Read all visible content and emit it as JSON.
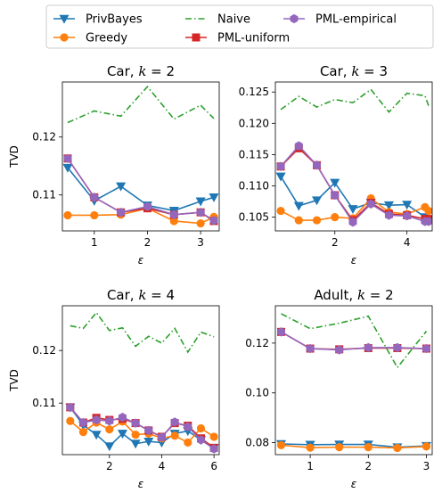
{
  "legend": {
    "entries": [
      {
        "label": "PrivBayes",
        "color": "#1f77b4",
        "marker": "triangle-down",
        "dash": "solid"
      },
      {
        "label": "Greedy",
        "color": "#ff7f0e",
        "marker": "circle",
        "dash": "solid"
      },
      {
        "label": "Naive",
        "color": "#2ca02c",
        "marker": "none",
        "dash": "dashdot"
      },
      {
        "label": "PML-uniform",
        "color": "#d62728",
        "marker": "square",
        "dash": "solid"
      },
      {
        "label": "PML-empirical",
        "color": "#9467bd",
        "marker": "hexagon",
        "dash": "solid"
      }
    ],
    "placement": "top-center"
  },
  "chart_data": [
    {
      "type": "line",
      "title": "Car, k = 2",
      "title_dataset": "Car, ",
      "title_var": "k",
      "title_rest": " = 2",
      "xlabel": "ε",
      "ylabel": "TVD",
      "xlim": [
        0.4,
        3.35
      ],
      "ylim": [
        0.1038,
        0.1295
      ],
      "xticks": [
        1,
        2,
        3
      ],
      "xtick_labels": [
        "1",
        "2",
        "3"
      ],
      "yticks": [
        0.11,
        0.12
      ],
      "ytick_labels": [
        "0.11",
        "0.12"
      ],
      "naive": {
        "x": [
          0.5,
          1.0,
          1.5,
          2.0,
          2.5,
          3.0,
          3.25
        ],
        "y": [
          0.1225,
          0.1245,
          0.1236,
          0.1287,
          0.1231,
          0.1255,
          0.1232
        ]
      },
      "series": [
        {
          "name": "PrivBayes",
          "x": [
            0.5,
            1.0,
            1.5,
            2.0,
            2.5,
            3.0,
            3.25
          ],
          "y": [
            0.1147,
            0.109,
            0.1115,
            0.1082,
            0.1073,
            0.1089,
            0.1096
          ]
        },
        {
          "name": "Greedy",
          "x": [
            0.5,
            1.0,
            1.5,
            2.0,
            2.5,
            3.0,
            3.25
          ],
          "y": [
            0.1065,
            0.1065,
            0.1066,
            0.1077,
            0.1055,
            0.1051,
            0.1062
          ]
        },
        {
          "name": "PML-uniform",
          "x": [
            0.5,
            1.0,
            1.5,
            2.0,
            2.5,
            3.0,
            3.25
          ],
          "y": [
            0.1163,
            0.1096,
            0.107,
            0.1077,
            0.1066,
            0.107,
            0.1055
          ]
        },
        {
          "name": "PML-empirical",
          "x": [
            0.5,
            1.0,
            1.5,
            2.0,
            2.5,
            3.0,
            3.25
          ],
          "y": [
            0.1163,
            0.1096,
            0.107,
            0.108,
            0.1066,
            0.107,
            0.1056
          ]
        }
      ]
    },
    {
      "type": "line",
      "title": "Car, k = 3",
      "title_dataset": "Car, ",
      "title_var": "k",
      "title_rest": " = 3",
      "xlabel": "ε",
      "ylabel": "",
      "xlim": [
        0.35,
        4.7
      ],
      "ylim": [
        0.1028,
        0.1266
      ],
      "xticks": [
        2,
        4
      ],
      "xtick_labels": [
        "2",
        "4"
      ],
      "yticks": [
        0.105,
        0.11,
        0.115,
        0.12,
        0.125
      ],
      "ytick_labels": [
        "0.105",
        "0.110",
        "0.115",
        "0.120",
        "0.125"
      ],
      "naive": {
        "x": [
          0.5,
          1.0,
          1.5,
          2.0,
          2.5,
          3.0,
          3.5,
          4.0,
          4.5,
          4.6
        ],
        "y": [
          0.1222,
          0.1243,
          0.1226,
          0.1238,
          0.1233,
          0.1254,
          0.1218,
          0.1248,
          0.1244,
          0.1228
        ]
      },
      "series": [
        {
          "name": "PrivBayes",
          "x": [
            0.5,
            1.0,
            1.5,
            2.0,
            2.5,
            3.0,
            3.5,
            4.0,
            4.5,
            4.6
          ],
          "y": [
            0.1115,
            0.1068,
            0.1077,
            0.1105,
            0.1063,
            0.1073,
            0.1069,
            0.107,
            0.105,
            0.1045
          ]
        },
        {
          "name": "Greedy",
          "x": [
            0.5,
            1.0,
            1.5,
            2.0,
            2.5,
            3.0,
            3.5,
            4.0,
            4.5,
            4.6
          ],
          "y": [
            0.106,
            0.1045,
            0.1045,
            0.105,
            0.1048,
            0.108,
            0.1058,
            0.1055,
            0.1066,
            0.106
          ]
        },
        {
          "name": "PML-uniform",
          "x": [
            0.5,
            1.0,
            1.5,
            2.0,
            2.5,
            3.0,
            3.5,
            4.0,
            4.5,
            4.6
          ],
          "y": [
            0.1131,
            0.116,
            0.1133,
            0.1085,
            0.1045,
            0.1073,
            0.1055,
            0.1053,
            0.1047,
            0.1047
          ]
        },
        {
          "name": "PML-empirical",
          "x": [
            0.5,
            1.0,
            1.5,
            2.0,
            2.5,
            3.0,
            3.5,
            4.0,
            4.5,
            4.6
          ],
          "y": [
            0.1131,
            0.1164,
            0.1133,
            0.1085,
            0.1042,
            0.1071,
            0.1053,
            0.1052,
            0.1043,
            0.1043
          ]
        }
      ]
    },
    {
      "type": "line",
      "title": "Car, k = 4",
      "title_dataset": "Car, ",
      "title_var": "k",
      "title_rest": " = 4",
      "xlabel": "ε",
      "ylabel": "TVD",
      "xlim": [
        0.2,
        6.2
      ],
      "ylim": [
        0.1002,
        0.1285
      ],
      "xticks": [
        2,
        4,
        6
      ],
      "xtick_labels": [
        "2",
        "4",
        "6"
      ],
      "yticks": [
        0.11,
        0.12
      ],
      "ytick_labels": [
        "0.11",
        "0.12"
      ],
      "naive": {
        "x": [
          0.5,
          1.0,
          1.5,
          2.0,
          2.5,
          3.0,
          3.5,
          4.0,
          4.5,
          5.0,
          5.5,
          6.0
        ],
        "y": [
          0.1247,
          0.1242,
          0.1272,
          0.1238,
          0.1243,
          0.1208,
          0.1227,
          0.1214,
          0.1242,
          0.1197,
          0.1235,
          0.1226
        ]
      },
      "series": [
        {
          "name": "PrivBayes",
          "x": [
            0.5,
            1.0,
            1.5,
            2.0,
            2.5,
            3.0,
            3.5,
            4.0,
            4.5,
            5.0,
            5.5,
            6.0
          ],
          "y": [
            0.1092,
            0.1058,
            0.104,
            0.1018,
            0.1042,
            0.1023,
            0.1027,
            0.1025,
            0.1042,
            0.1047,
            0.103,
            0.1015
          ]
        },
        {
          "name": "Greedy",
          "x": [
            0.5,
            1.0,
            1.5,
            2.0,
            2.5,
            3.0,
            3.5,
            4.0,
            4.5,
            5.0,
            5.5,
            6.0
          ],
          "y": [
            0.1066,
            0.1045,
            0.1063,
            0.105,
            0.1065,
            0.104,
            0.1042,
            0.1033,
            0.1038,
            0.1025,
            0.1052,
            0.1036
          ]
        },
        {
          "name": "PML-uniform",
          "x": [
            0.5,
            1.0,
            1.5,
            2.0,
            2.5,
            3.0,
            3.5,
            4.0,
            4.5,
            5.0,
            5.5,
            6.0
          ],
          "y": [
            0.1092,
            0.1063,
            0.1072,
            0.1068,
            0.107,
            0.1062,
            0.1048,
            0.1036,
            0.1062,
            0.1057,
            0.1033,
            0.1015
          ]
        },
        {
          "name": "PML-empirical",
          "x": [
            0.5,
            1.0,
            1.5,
            2.0,
            2.5,
            3.0,
            3.5,
            4.0,
            4.5,
            5.0,
            5.5,
            6.0
          ],
          "y": [
            0.1092,
            0.1063,
            0.1068,
            0.1066,
            0.1073,
            0.1062,
            0.1048,
            0.1035,
            0.1064,
            0.1055,
            0.103,
            0.1013
          ]
        }
      ]
    },
    {
      "type": "line",
      "title": "Adult, k = 2",
      "title_dataset": "Adult, ",
      "title_var": "k",
      "title_rest": " = 2",
      "xlabel": "ε",
      "ylabel": "",
      "xlim": [
        0.4,
        3.1
      ],
      "ylim": [
        0.0752,
        0.135
      ],
      "xticks": [
        1,
        2,
        3
      ],
      "xtick_labels": [
        "1",
        "2",
        "3"
      ],
      "yticks": [
        0.08,
        0.1,
        0.12
      ],
      "ytick_labels": [
        "0.08",
        "0.10",
        "0.12"
      ],
      "naive": {
        "x": [
          0.5,
          1.0,
          1.5,
          2.0,
          2.5,
          3.0
        ],
        "y": [
          0.1318,
          0.1258,
          0.128,
          0.1308,
          0.1102,
          0.1248
        ]
      },
      "series": [
        {
          "name": "PrivBayes",
          "x": [
            0.5,
            1.0,
            1.5,
            2.0,
            2.5,
            3.0
          ],
          "y": [
            0.0795,
            0.0792,
            0.0793,
            0.0793,
            0.0782,
            0.0787
          ]
        },
        {
          "name": "Greedy",
          "x": [
            0.5,
            1.0,
            1.5,
            2.0,
            2.5,
            3.0
          ],
          "y": [
            0.079,
            0.078,
            0.0782,
            0.0782,
            0.0779,
            0.0785
          ]
        },
        {
          "name": "PML-uniform",
          "x": [
            0.5,
            1.0,
            1.5,
            2.0,
            2.5,
            3.0
          ],
          "y": [
            0.1245,
            0.1178,
            0.1175,
            0.118,
            0.118,
            0.1178
          ]
        },
        {
          "name": "PML-empirical",
          "x": [
            0.5,
            1.0,
            1.5,
            2.0,
            2.5,
            3.0
          ],
          "y": [
            0.1245,
            0.1178,
            0.1173,
            0.1182,
            0.1182,
            0.1178
          ]
        }
      ]
    }
  ]
}
